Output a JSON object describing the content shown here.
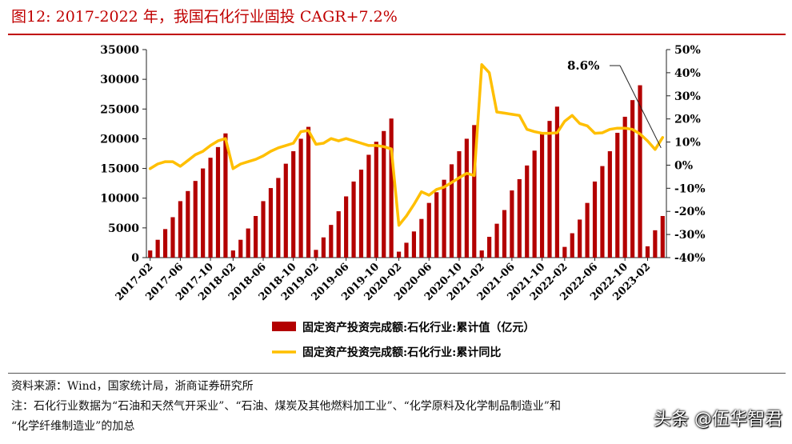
{
  "header": {
    "title": "图12:   2017-2022 年，我国石化行业固投 CAGR+7.2%"
  },
  "footer": {
    "source": "资料来源：Wind，国家统计局，浙商证券研究所",
    "note_line1": "注：石化行业数据为“石油和天然气开采业”、“石油、煤炭及其他燃料加工业”、“化学原料及化学制品制造业”和",
    "note_line2": "“化学纤维制造业”的加总",
    "watermark": "头条 @伍华智君"
  },
  "colors": {
    "bar": "#b30000",
    "line": "#ffbf00",
    "title": "#c00000"
  },
  "chart_data": {
    "type": "bar",
    "title": "",
    "xlabel": "",
    "ylabel": "",
    "ylim": [
      0,
      35000
    ],
    "y2lim": [
      -40,
      50
    ],
    "y_ticks": [
      0,
      5000,
      10000,
      15000,
      20000,
      25000,
      30000,
      35000
    ],
    "y_tick_labels": [
      "0",
      "5000",
      "10000",
      "15000",
      "20000",
      "25000",
      "30000",
      "35000"
    ],
    "y2_ticks": [
      -40,
      -30,
      -20,
      -10,
      0,
      10,
      20,
      30,
      40,
      50
    ],
    "y2_tick_labels": [
      "-40%",
      "-30%",
      "-20%",
      "-10%",
      "0%",
      "10%",
      "20%",
      "30%",
      "40%",
      "50%"
    ],
    "x_tick_labels": [
      "2017-02",
      "2017-06",
      "2017-10",
      "2018-02",
      "2018-06",
      "2018-10",
      "2019-02",
      "2019-06",
      "2019-10",
      "2020-02",
      "2020-06",
      "2020-10",
      "2021-02",
      "2021-06",
      "2021-10",
      "2022-02",
      "2022-06",
      "2022-10",
      "2023-02"
    ],
    "grid": false,
    "legend_position": "bottom",
    "annotation": "8.6%",
    "categories": [
      "2017-02",
      "2017-03",
      "2017-04",
      "2017-05",
      "2017-06",
      "2017-07",
      "2017-08",
      "2017-09",
      "2017-10",
      "2017-11",
      "2017-12",
      "2018-02",
      "2018-03",
      "2018-04",
      "2018-05",
      "2018-06",
      "2018-07",
      "2018-08",
      "2018-09",
      "2018-10",
      "2018-11",
      "2018-12",
      "2019-02",
      "2019-03",
      "2019-04",
      "2019-05",
      "2019-06",
      "2019-07",
      "2019-08",
      "2019-09",
      "2019-10",
      "2019-11",
      "2019-12",
      "2020-02",
      "2020-03",
      "2020-04",
      "2020-05",
      "2020-06",
      "2020-07",
      "2020-08",
      "2020-09",
      "2020-10",
      "2020-11",
      "2020-12",
      "2021-02",
      "2021-03",
      "2021-04",
      "2021-05",
      "2021-06",
      "2021-07",
      "2021-08",
      "2021-09",
      "2021-10",
      "2021-11",
      "2021-12",
      "2022-02",
      "2022-03",
      "2022-04",
      "2022-05",
      "2022-06",
      "2022-07",
      "2022-08",
      "2022-09",
      "2022-10",
      "2022-11",
      "2022-12",
      "2023-02",
      "2023-03",
      "2023-04"
    ],
    "series": [
      {
        "name": "固定资产投资完成额:石化行业:累计值（亿元）",
        "type": "bar",
        "axis": "left",
        "values": [
          1200,
          3000,
          4800,
          6800,
          9500,
          11200,
          12900,
          15000,
          16800,
          18600,
          20900,
          1200,
          3000,
          4900,
          7000,
          9500,
          11700,
          13400,
          15800,
          17900,
          20000,
          22000,
          1300,
          3400,
          5500,
          7800,
          10300,
          12800,
          14800,
          17300,
          19500,
          21300,
          23400,
          1000,
          2500,
          4400,
          6500,
          9200,
          11000,
          13100,
          15700,
          17900,
          20000,
          22300,
          1200,
          3500,
          5700,
          8000,
          11300,
          13200,
          15500,
          18000,
          20800,
          23000,
          25400,
          1800,
          4100,
          6400,
          9200,
          12800,
          15400,
          17900,
          21000,
          23700,
          26500,
          29000,
          1900,
          4600,
          7000
        ]
      },
      {
        "name": "固定资产投资完成额:石化行业:累计同比",
        "type": "line",
        "axis": "right",
        "values": [
          -1.5,
          0.5,
          1.5,
          1.5,
          -0.5,
          2.0,
          4.5,
          6.0,
          8.5,
          10.5,
          11.5,
          -1.5,
          0.5,
          1.5,
          2.5,
          4.0,
          6.0,
          7.5,
          8.5,
          9.5,
          14.5,
          15.0,
          9.0,
          9.5,
          11.5,
          10.5,
          11.5,
          10.5,
          9.5,
          8.5,
          8.5,
          8.0,
          7.0,
          -26,
          -22,
          -17,
          -11.5,
          -13,
          -10.5,
          -9.5,
          -7.5,
          -5.5,
          -3.5,
          -4.5,
          43.5,
          40,
          23,
          22.5,
          22,
          21.5,
          15.5,
          14.5,
          13.8,
          13.8,
          14.0,
          19.0,
          21.5,
          18.0,
          17.0,
          13.8,
          14.0,
          15.5,
          16.0,
          16.0,
          15.5,
          13.5,
          10.5,
          6.8,
          12.0
        ]
      }
    ]
  }
}
